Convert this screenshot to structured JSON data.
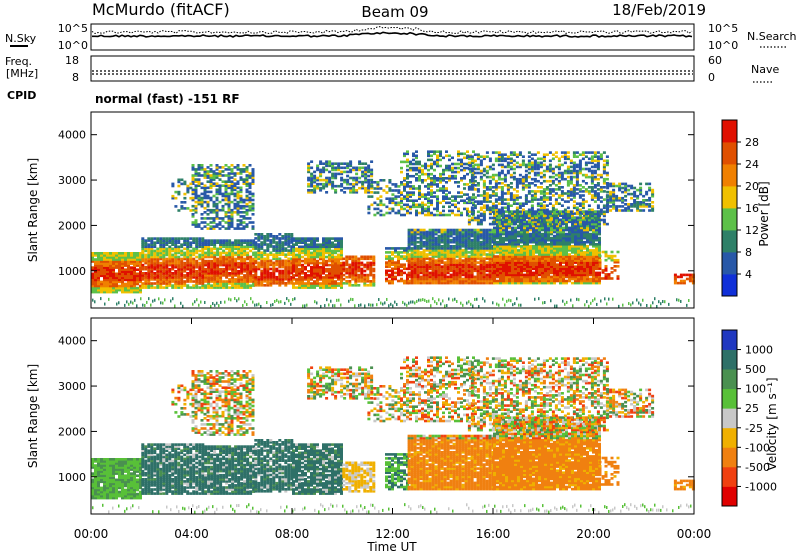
{
  "header": {
    "station": "McMurdo (fitACF)",
    "beam": "Beam 09",
    "date": "18/Feb/2019"
  },
  "noise_panel": {
    "left_label": "N.Sky",
    "right_label": "N.Search",
    "left_ticks": [
      "10^5",
      "10^0"
    ],
    "right_ticks": [
      "10^5",
      "10^0"
    ]
  },
  "freq_panel": {
    "left_label_top": "Freq.",
    "left_label_bottom": "[MHz]",
    "right_label": "Nave",
    "left_ticks": [
      "18",
      "8"
    ],
    "right_ticks": [
      "60",
      "0"
    ]
  },
  "cpid": {
    "label": "CPID",
    "value": "normal (fast) -151 RF"
  },
  "chart_data": [
    {
      "type": "heatmap",
      "name": "power",
      "ylabel": "Slant Range [km]",
      "ylim": [
        180,
        4500
      ],
      "yticks": [
        "1000",
        "2000",
        "3000",
        "4000"
      ],
      "xlim": [
        0,
        24
      ],
      "colorbar": {
        "label": "Power [dB]",
        "ticks": [
          "4",
          "8",
          "12",
          "16",
          "20",
          "24",
          "28"
        ],
        "colors": [
          "#1030d8",
          "#2858a8",
          "#2e8068",
          "#5cc048",
          "#f0c000",
          "#f08000",
          "#e05000",
          "#e01000"
        ]
      }
    },
    {
      "type": "heatmap",
      "name": "velocity",
      "ylabel": "Slant Range [km]",
      "ylim": [
        180,
        4500
      ],
      "yticks": [
        "1000",
        "2000",
        "3000",
        "4000"
      ],
      "xlim": [
        0,
        24
      ],
      "xlabel": "Time UT",
      "xticks": [
        "00:00",
        "04:00",
        "08:00",
        "12:00",
        "16:00",
        "20:00",
        "00:00"
      ],
      "colorbar": {
        "label": "Velocity [m s⁻¹]",
        "ticks": [
          "1000",
          "500",
          "100",
          "25",
          "-25",
          "-100",
          "-500",
          "-1000"
        ],
        "colors": [
          "#2038c0",
          "#2e7068",
          "#4a9050",
          "#58c038",
          "#c8c8c8",
          "#f0b000",
          "#f08010",
          "#f04010",
          "#e00000"
        ]
      }
    }
  ]
}
